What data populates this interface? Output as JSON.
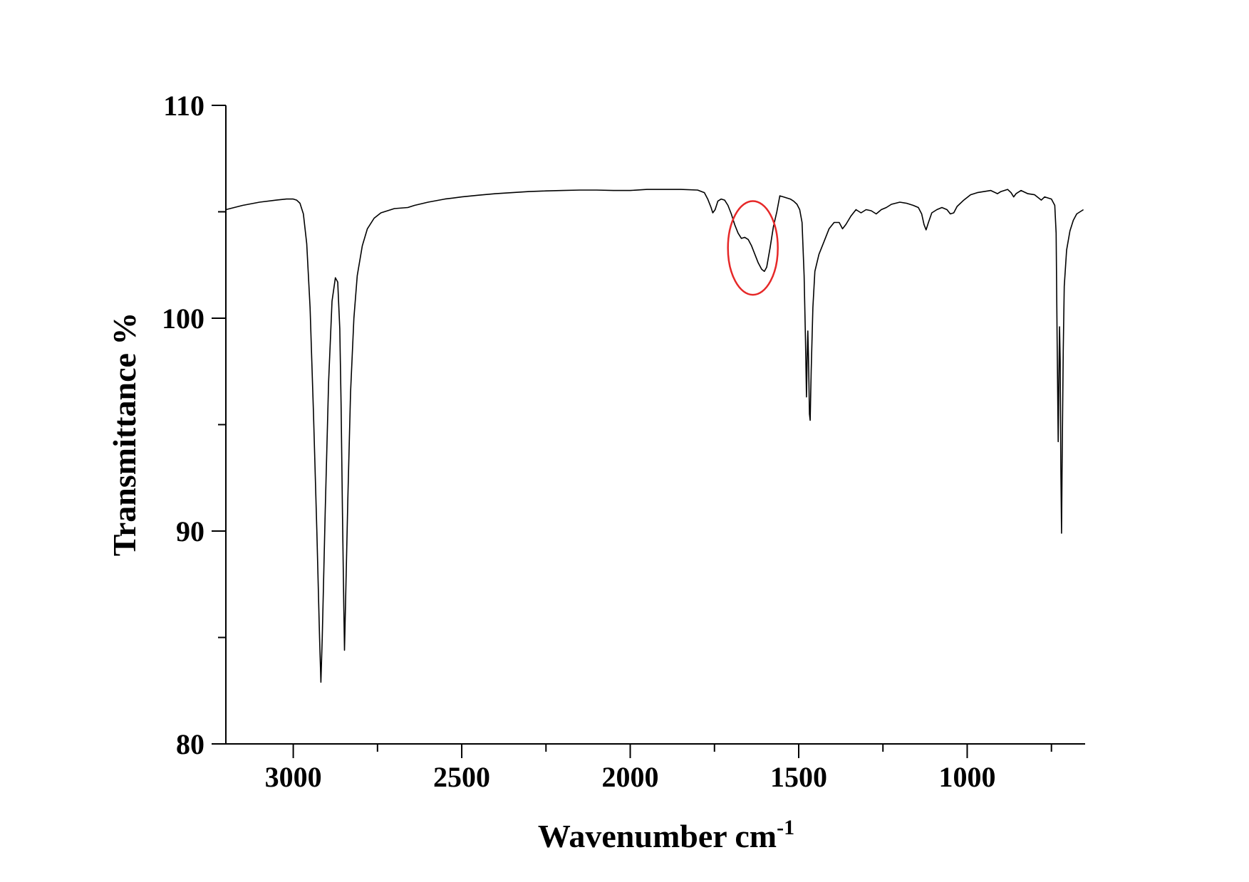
{
  "chart_data": {
    "type": "line",
    "title": "",
    "xlabel": "Wavenumber cm",
    "xlabel_superscript": "-1",
    "ylabel": "Transmittance %",
    "xlim": [
      3200,
      650
    ],
    "ylim": [
      80,
      110
    ],
    "x_reversed": true,
    "grid": false,
    "x_ticks": [
      {
        "value": 3000,
        "label": "3000"
      },
      {
        "value": 2500,
        "label": "2500"
      },
      {
        "value": 2000,
        "label": "2000"
      },
      {
        "value": 1500,
        "label": "1500"
      },
      {
        "value": 1000,
        "label": "1000"
      }
    ],
    "x_minor_ticks": [
      2750,
      2250,
      1750,
      1250,
      750
    ],
    "y_ticks": [
      {
        "value": 110,
        "label": "110"
      },
      {
        "value": 100,
        "label": "100"
      },
      {
        "value": 90,
        "label": "90"
      },
      {
        "value": 80,
        "label": "80"
      }
    ],
    "y_minor_ticks": [
      105,
      95,
      85
    ],
    "series": [
      {
        "color": "#000000",
        "points": [
          [
            3200,
            105.1
          ],
          [
            3150,
            105.3
          ],
          [
            3100,
            105.45
          ],
          [
            3050,
            105.55
          ],
          [
            3020,
            105.6
          ],
          [
            3000,
            105.6
          ],
          [
            2990,
            105.55
          ],
          [
            2980,
            105.4
          ],
          [
            2970,
            104.9
          ],
          [
            2960,
            103.5
          ],
          [
            2950,
            100.5
          ],
          [
            2940,
            95.5
          ],
          [
            2930,
            90.0
          ],
          [
            2922,
            85.0
          ],
          [
            2918,
            82.9
          ],
          [
            2914,
            85.0
          ],
          [
            2905,
            91.0
          ],
          [
            2895,
            97.0
          ],
          [
            2885,
            100.8
          ],
          [
            2875,
            101.9
          ],
          [
            2868,
            101.7
          ],
          [
            2862,
            99.5
          ],
          [
            2858,
            96.0
          ],
          [
            2854,
            91.0
          ],
          [
            2850,
            86.5
          ],
          [
            2848,
            84.4
          ],
          [
            2845,
            86.5
          ],
          [
            2838,
            91.5
          ],
          [
            2830,
            96.5
          ],
          [
            2820,
            100.0
          ],
          [
            2810,
            102.0
          ],
          [
            2795,
            103.4
          ],
          [
            2780,
            104.2
          ],
          [
            2760,
            104.7
          ],
          [
            2740,
            104.95
          ],
          [
            2700,
            105.15
          ],
          [
            2660,
            105.2
          ],
          [
            2640,
            105.3
          ],
          [
            2600,
            105.45
          ],
          [
            2550,
            105.6
          ],
          [
            2500,
            105.7
          ],
          [
            2450,
            105.78
          ],
          [
            2400,
            105.85
          ],
          [
            2350,
            105.9
          ],
          [
            2300,
            105.95
          ],
          [
            2250,
            105.98
          ],
          [
            2200,
            106.0
          ],
          [
            2150,
            106.02
          ],
          [
            2100,
            106.02
          ],
          [
            2050,
            106.0
          ],
          [
            2000,
            106.0
          ],
          [
            1950,
            106.05
          ],
          [
            1900,
            106.05
          ],
          [
            1850,
            106.05
          ],
          [
            1800,
            106.02
          ],
          [
            1780,
            105.9
          ],
          [
            1770,
            105.6
          ],
          [
            1760,
            105.2
          ],
          [
            1755,
            104.95
          ],
          [
            1748,
            105.1
          ],
          [
            1740,
            105.5
          ],
          [
            1730,
            105.6
          ],
          [
            1720,
            105.55
          ],
          [
            1710,
            105.3
          ],
          [
            1700,
            104.9
          ],
          [
            1690,
            104.4
          ],
          [
            1680,
            104.0
          ],
          [
            1670,
            103.75
          ],
          [
            1660,
            103.8
          ],
          [
            1650,
            103.7
          ],
          [
            1640,
            103.4
          ],
          [
            1630,
            103.0
          ],
          [
            1620,
            102.6
          ],
          [
            1610,
            102.3
          ],
          [
            1602,
            102.2
          ],
          [
            1595,
            102.4
          ],
          [
            1585,
            103.3
          ],
          [
            1575,
            104.3
          ],
          [
            1565,
            105.0
          ],
          [
            1556,
            105.75
          ],
          [
            1545,
            105.7
          ],
          [
            1535,
            105.65
          ],
          [
            1525,
            105.6
          ],
          [
            1515,
            105.5
          ],
          [
            1505,
            105.35
          ],
          [
            1497,
            105.1
          ],
          [
            1490,
            104.5
          ],
          [
            1484,
            102.0
          ],
          [
            1480,
            99.0
          ],
          [
            1477,
            96.3
          ],
          [
            1475,
            98.0
          ],
          [
            1473,
            99.4
          ],
          [
            1471,
            98.2
          ],
          [
            1468,
            95.5
          ],
          [
            1466,
            95.2
          ],
          [
            1463,
            97.5
          ],
          [
            1458,
            100.5
          ],
          [
            1452,
            102.2
          ],
          [
            1440,
            103.0
          ],
          [
            1425,
            103.6
          ],
          [
            1410,
            104.2
          ],
          [
            1395,
            104.5
          ],
          [
            1380,
            104.5
          ],
          [
            1370,
            104.2
          ],
          [
            1360,
            104.4
          ],
          [
            1345,
            104.8
          ],
          [
            1330,
            105.1
          ],
          [
            1315,
            104.95
          ],
          [
            1300,
            105.1
          ],
          [
            1285,
            105.05
          ],
          [
            1270,
            104.9
          ],
          [
            1255,
            105.1
          ],
          [
            1240,
            105.2
          ],
          [
            1225,
            105.35
          ],
          [
            1200,
            105.45
          ],
          [
            1180,
            105.4
          ],
          [
            1160,
            105.3
          ],
          [
            1145,
            105.2
          ],
          [
            1135,
            104.9
          ],
          [
            1128,
            104.4
          ],
          [
            1122,
            104.15
          ],
          [
            1115,
            104.5
          ],
          [
            1105,
            104.95
          ],
          [
            1090,
            105.1
          ],
          [
            1075,
            105.2
          ],
          [
            1060,
            105.1
          ],
          [
            1050,
            104.9
          ],
          [
            1040,
            104.95
          ],
          [
            1030,
            105.25
          ],
          [
            1010,
            105.55
          ],
          [
            990,
            105.8
          ],
          [
            970,
            105.9
          ],
          [
            950,
            105.95
          ],
          [
            930,
            106.0
          ],
          [
            910,
            105.85
          ],
          [
            900,
            105.95
          ],
          [
            880,
            106.05
          ],
          [
            870,
            105.9
          ],
          [
            862,
            105.7
          ],
          [
            855,
            105.85
          ],
          [
            840,
            106.0
          ],
          [
            820,
            105.85
          ],
          [
            800,
            105.8
          ],
          [
            780,
            105.55
          ],
          [
            770,
            105.7
          ],
          [
            750,
            105.6
          ],
          [
            740,
            105.3
          ],
          [
            736,
            104.0
          ],
          [
            733,
            99.0
          ],
          [
            730,
            94.2
          ],
          [
            728,
            97.0
          ],
          [
            726,
            99.6
          ],
          [
            724,
            98.0
          ],
          [
            722,
            93.0
          ],
          [
            720,
            89.9
          ],
          [
            718,
            93.5
          ],
          [
            715,
            98.5
          ],
          [
            712,
            101.5
          ],
          [
            705,
            103.2
          ],
          [
            695,
            104.1
          ],
          [
            685,
            104.6
          ],
          [
            675,
            104.9
          ],
          [
            665,
            105.0
          ],
          [
            660,
            105.05
          ],
          [
            655,
            105.1
          ]
        ]
      }
    ],
    "annotation": {
      "shape": "ellipse",
      "color": "#e62828",
      "center": [
        1636,
        103.3
      ],
      "rx_units": 74,
      "ry_units": 2.2
    }
  }
}
